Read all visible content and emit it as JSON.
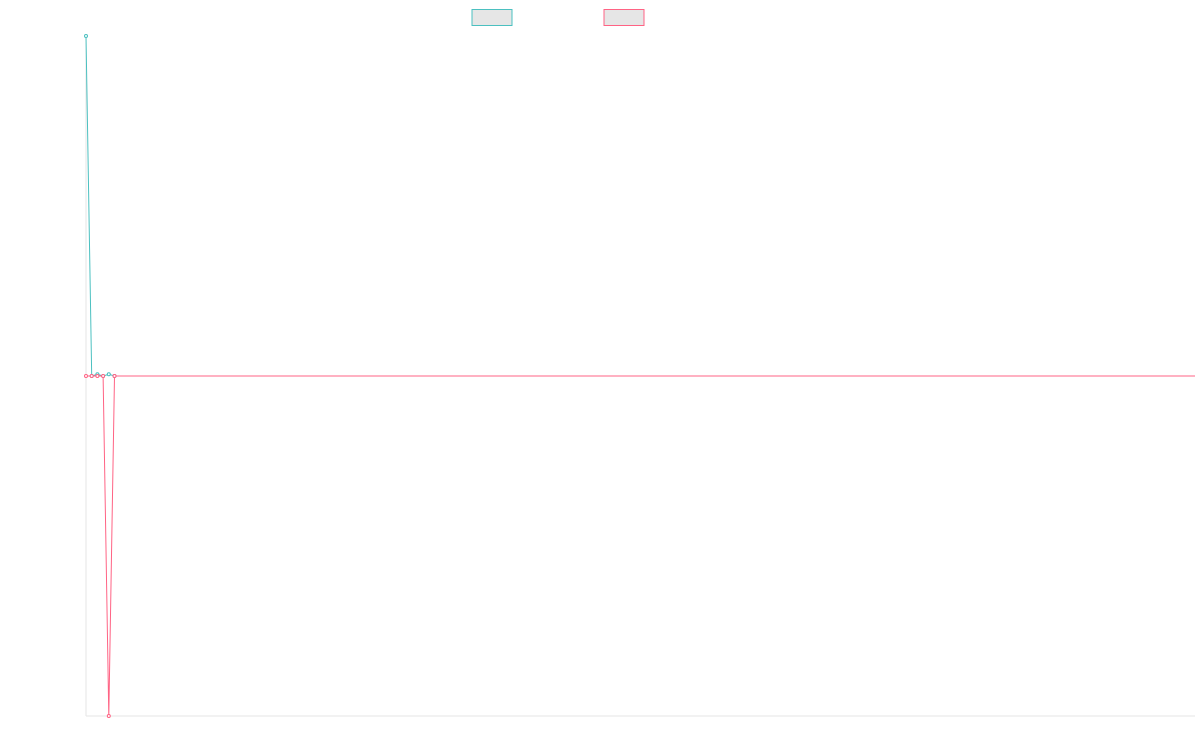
{
  "chart_data": {
    "type": "line",
    "title": "",
    "xlabel": "",
    "ylabel": "",
    "grid": false,
    "legend_position": "top-center",
    "x": [
      0,
      1,
      2,
      3,
      4,
      5
    ],
    "ylim": [
      -1,
      1
    ],
    "series": [
      {
        "name": "",
        "color": "#4bc0c0",
        "values": [
          1,
          0,
          0.005,
          0,
          0.005,
          0
        ]
      },
      {
        "name": "",
        "color": "#ff6384",
        "values": [
          0,
          0,
          0,
          0,
          -1,
          0
        ]
      }
    ]
  }
}
